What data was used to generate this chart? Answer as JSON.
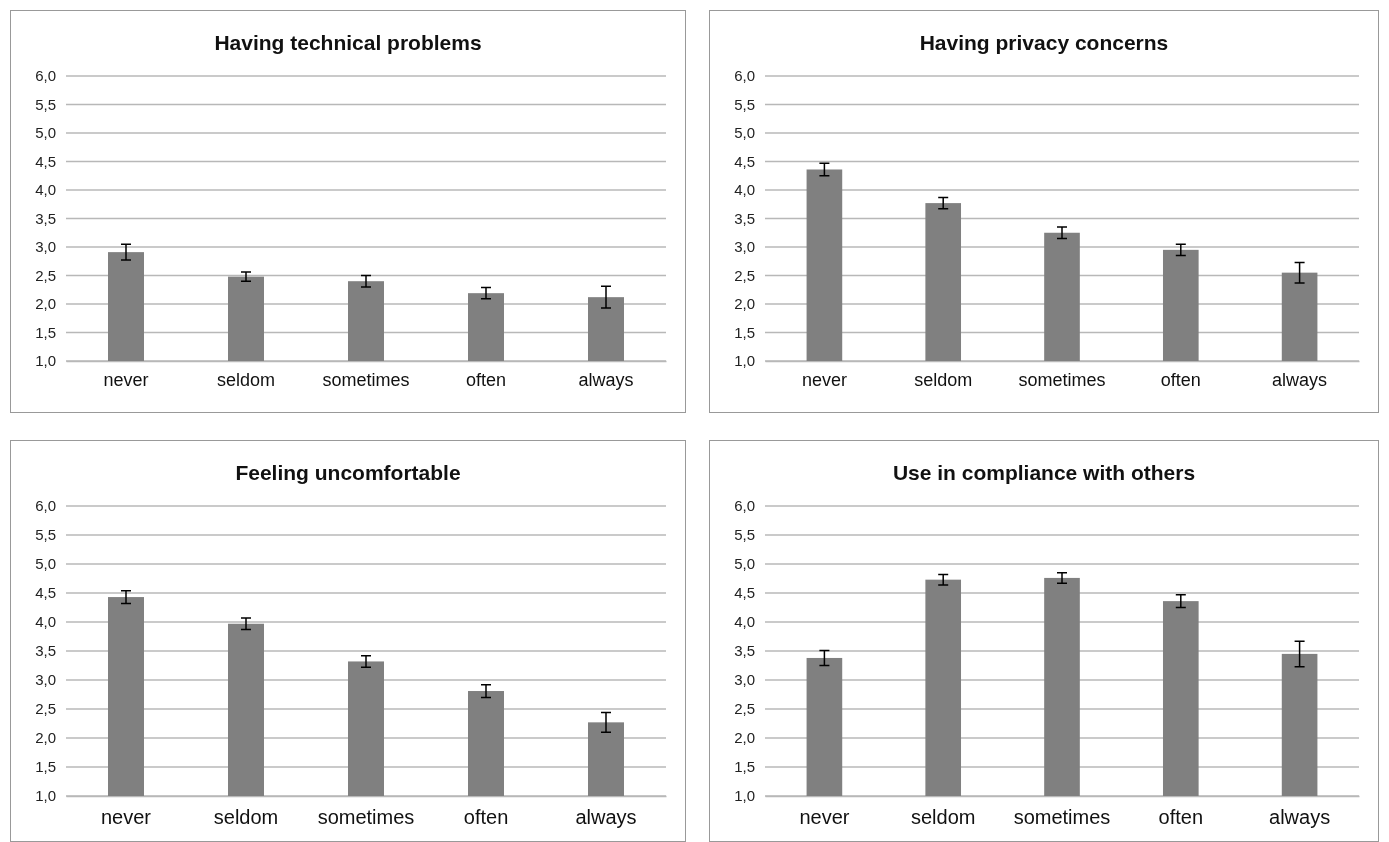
{
  "chart_data": [
    {
      "type": "bar",
      "title": "Having technical problems",
      "categories": [
        "never",
        "seldom",
        "sometimes",
        "often",
        "always"
      ],
      "series": [
        {
          "color": "#808080",
          "values": [
            2.91,
            2.48,
            2.4,
            2.19,
            2.12
          ],
          "errors": [
            0.14,
            0.08,
            0.1,
            0.1,
            0.19
          ]
        }
      ],
      "ylim": [
        1,
        6
      ],
      "yticks": [
        {
          "value": 1,
          "label": "1,0"
        },
        {
          "value": 1.5,
          "label": "1,5"
        },
        {
          "value": 2,
          "label": "2,0"
        },
        {
          "value": 2.5,
          "label": "2,5"
        },
        {
          "value": 3,
          "label": "3,0"
        },
        {
          "value": 3.5,
          "label": "3,5"
        },
        {
          "value": 4,
          "label": "4,0"
        },
        {
          "value": 4.5,
          "label": "4,5"
        },
        {
          "value": 5,
          "label": "5,0"
        },
        {
          "value": 5.5,
          "label": "5,5"
        },
        {
          "value": 6,
          "label": "6,0"
        }
      ],
      "grid": "y"
    },
    {
      "type": "bar",
      "title": "Having privacy concerns",
      "categories": [
        "never",
        "seldom",
        "sometimes",
        "often",
        "always"
      ],
      "series": [
        {
          "color": "#808080",
          "values": [
            4.36,
            3.77,
            3.25,
            2.95,
            2.55
          ],
          "errors": [
            0.11,
            0.1,
            0.1,
            0.1,
            0.18
          ]
        }
      ],
      "ylim": [
        1,
        6
      ],
      "yticks": [
        {
          "value": 1,
          "label": "1,0"
        },
        {
          "value": 1.5,
          "label": "1,5"
        },
        {
          "value": 2,
          "label": "2,0"
        },
        {
          "value": 2.5,
          "label": "2,5"
        },
        {
          "value": 3,
          "label": "3,0"
        },
        {
          "value": 3.5,
          "label": "3,5"
        },
        {
          "value": 4,
          "label": "4,0"
        },
        {
          "value": 4.5,
          "label": "4,5"
        },
        {
          "value": 5,
          "label": "5,0"
        },
        {
          "value": 5.5,
          "label": "5,5"
        },
        {
          "value": 6,
          "label": "6,0"
        }
      ],
      "grid": "y"
    },
    {
      "type": "bar",
      "title": "Feeling uncomfortable",
      "categories": [
        "never",
        "seldom",
        "sometimes",
        "often",
        "always"
      ],
      "series": [
        {
          "color": "#808080",
          "values": [
            4.43,
            3.97,
            3.32,
            2.81,
            2.27
          ],
          "errors": [
            0.11,
            0.1,
            0.1,
            0.11,
            0.17
          ]
        }
      ],
      "ylim": [
        1,
        6
      ],
      "yticks": [
        {
          "value": 1,
          "label": "1,0"
        },
        {
          "value": 1.5,
          "label": "1,5"
        },
        {
          "value": 2,
          "label": "2,0"
        },
        {
          "value": 2.5,
          "label": "2,5"
        },
        {
          "value": 3,
          "label": "3,0"
        },
        {
          "value": 3.5,
          "label": "3,5"
        },
        {
          "value": 4,
          "label": "4,0"
        },
        {
          "value": 4.5,
          "label": "4,5"
        },
        {
          "value": 5,
          "label": "5,0"
        },
        {
          "value": 5.5,
          "label": "5,5"
        },
        {
          "value": 6,
          "label": "6,0"
        }
      ],
      "grid": "y"
    },
    {
      "type": "bar",
      "title": "Use in compliance with others",
      "categories": [
        "never",
        "seldom",
        "sometimes",
        "often",
        "always"
      ],
      "series": [
        {
          "color": "#808080",
          "values": [
            3.38,
            4.73,
            4.76,
            4.36,
            3.45
          ],
          "errors": [
            0.13,
            0.09,
            0.09,
            0.11,
            0.22
          ]
        }
      ],
      "ylim": [
        1,
        6
      ],
      "yticks": [
        {
          "value": 1,
          "label": "1,0"
        },
        {
          "value": 1.5,
          "label": "1,5"
        },
        {
          "value": 2,
          "label": "2,0"
        },
        {
          "value": 2.5,
          "label": "2,5"
        },
        {
          "value": 3,
          "label": "3,0"
        },
        {
          "value": 3.5,
          "label": "3,5"
        },
        {
          "value": 4,
          "label": "4,0"
        },
        {
          "value": 4.5,
          "label": "4,5"
        },
        {
          "value": 5,
          "label": "5,0"
        },
        {
          "value": 5.5,
          "label": "5,5"
        },
        {
          "value": 6,
          "label": "6,0"
        }
      ],
      "grid": "y"
    }
  ]
}
